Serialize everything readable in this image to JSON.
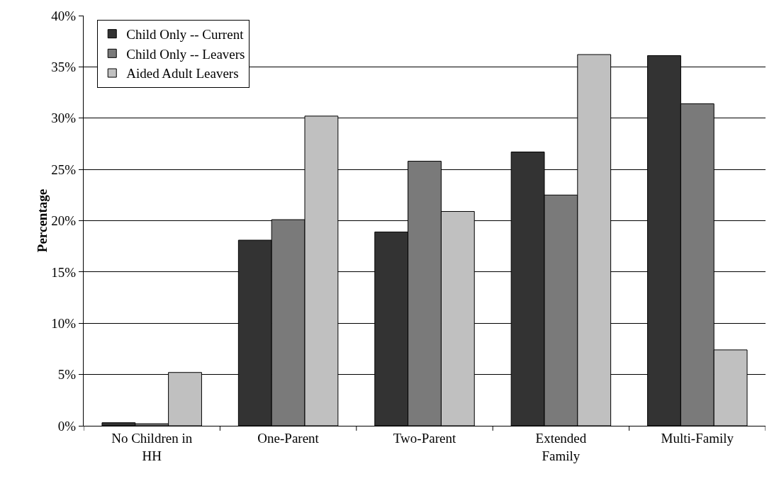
{
  "chart_data": {
    "type": "bar",
    "ylabel": "Percentage",
    "categories": [
      "No Children in HH",
      "One-Parent",
      "Two-Parent",
      "Extended Family",
      "Multi-Family"
    ],
    "series": [
      {
        "name": "Child Only -- Current",
        "color": "#333333",
        "values": [
          0.3,
          18.1,
          18.9,
          26.7,
          36.1
        ]
      },
      {
        "name": "Child Only -- Leavers",
        "color": "#7a7a7a",
        "values": [
          0.2,
          20.1,
          25.8,
          22.5,
          31.4
        ]
      },
      {
        "name": "Aided Adult Leavers",
        "color": "#c0c0c0",
        "values": [
          5.2,
          30.2,
          20.9,
          36.2,
          7.4
        ]
      }
    ],
    "ylim": [
      0,
      40
    ],
    "yticks": [
      {
        "value": 0,
        "label": "0%"
      },
      {
        "value": 5,
        "label": "5%"
      },
      {
        "value": 10,
        "label": "10%"
      },
      {
        "value": 15,
        "label": "15%"
      },
      {
        "value": 20,
        "label": "20%"
      },
      {
        "value": 25,
        "label": "25%"
      },
      {
        "value": 30,
        "label": "30%"
      },
      {
        "value": 35,
        "label": "35%"
      },
      {
        "value": 40,
        "label": "40%"
      }
    ],
    "grid": "y",
    "legend": "top left"
  }
}
